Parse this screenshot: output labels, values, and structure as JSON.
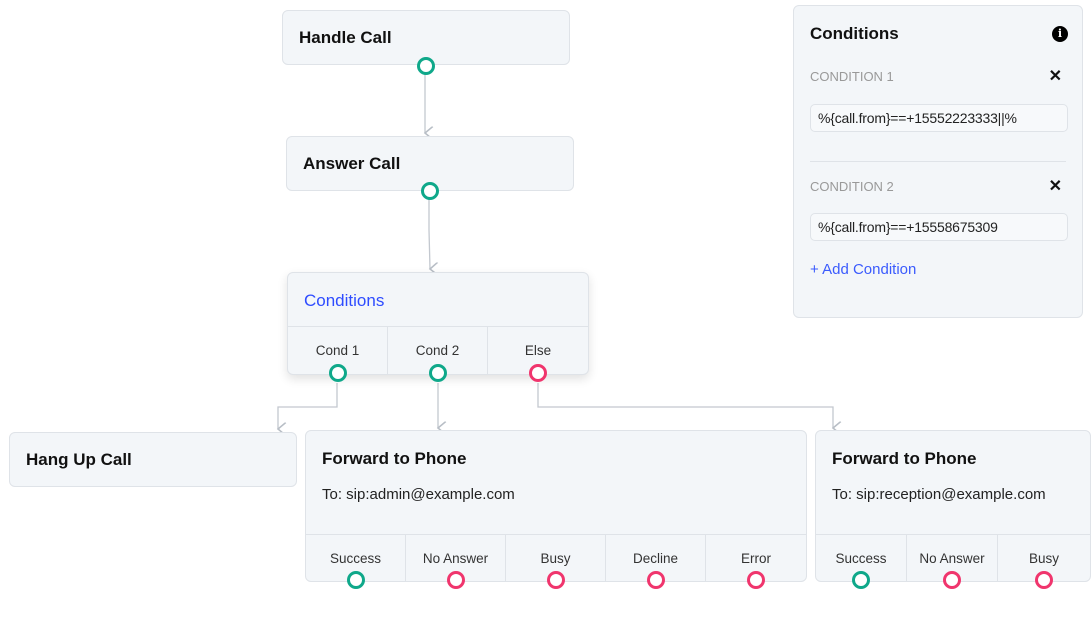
{
  "colors": {
    "success": "#0fa88a",
    "error": "#f0356d",
    "accent": "#2e4cff"
  },
  "nodes": {
    "handle_call": {
      "title": "Handle Call"
    },
    "answer_call": {
      "title": "Answer Call"
    },
    "conditions": {
      "title": "Conditions",
      "outputs": [
        "Cond 1",
        "Cond 2",
        "Else"
      ]
    },
    "hang_up": {
      "title": "Hang Up Call"
    },
    "forward1": {
      "title": "Forward to Phone",
      "to": "To: sip:admin@example.com",
      "outputs": [
        "Success",
        "No Answer",
        "Busy",
        "Decline",
        "Error"
      ]
    },
    "forward2": {
      "title": "Forward to Phone",
      "to": "To: sip:reception@example.com",
      "outputs": [
        "Success",
        "No Answer",
        "Busy"
      ]
    }
  },
  "panel": {
    "title": "Conditions",
    "info_icon": "info-icon",
    "conditions": [
      {
        "label": "CONDITION 1",
        "value": "%{call.from}==+15552223333||%"
      },
      {
        "label": "CONDITION 2",
        "value": "%{call.from}==+15558675309"
      }
    ],
    "add_label": "+ Add Condition"
  }
}
